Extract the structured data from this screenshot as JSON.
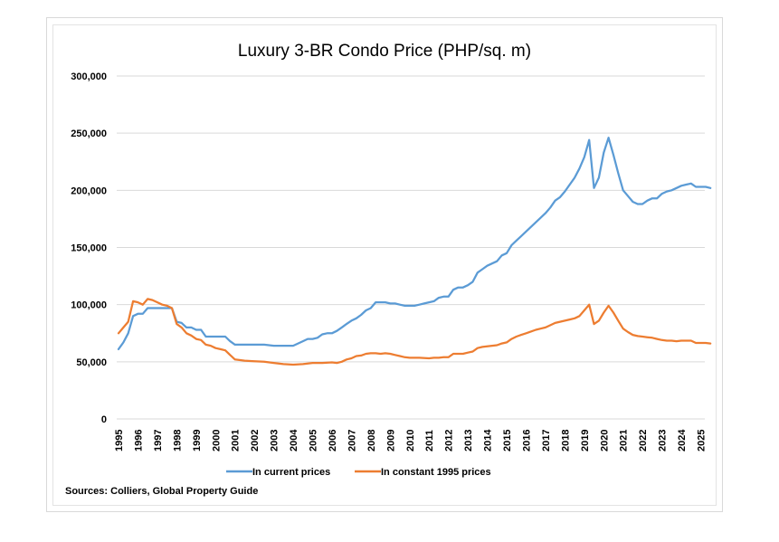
{
  "chart_data": {
    "type": "line",
    "title": "Luxury 3-BR Condo Price (PHP/sq. m)",
    "xlabel": "",
    "ylabel": "",
    "ylim": [
      0,
      300000
    ],
    "yticks": [
      0,
      50000,
      100000,
      150000,
      200000,
      250000,
      300000
    ],
    "ytick_labels": [
      "0",
      "50,000",
      "100,000",
      "150,000",
      "200,000",
      "250,000",
      "300,000"
    ],
    "xlim": [
      1995,
      2025.6
    ],
    "xtick_labels": [
      "1995",
      "1996",
      "1997",
      "1998",
      "1999",
      "2000",
      "2001",
      "2002",
      "2003",
      "2004",
      "2005",
      "2006",
      "2007",
      "2008",
      "2009",
      "2010",
      "2011",
      "2012",
      "2013",
      "2014",
      "2015",
      "2016",
      "2017",
      "2018",
      "2019",
      "2020",
      "2021",
      "2022",
      "2023",
      "2024",
      "2025"
    ],
    "grid": true,
    "legend": "bottom-center",
    "series": [
      {
        "name": "In current prices",
        "color": "#5b9bd5",
        "points": [
          [
            1995.0,
            61000
          ],
          [
            1995.25,
            67000
          ],
          [
            1995.5,
            75000
          ],
          [
            1995.75,
            90000
          ],
          [
            1996.0,
            92000
          ],
          [
            1996.25,
            92000
          ],
          [
            1996.5,
            97000
          ],
          [
            1996.75,
            97000
          ],
          [
            1997.0,
            97000
          ],
          [
            1997.25,
            97000
          ],
          [
            1997.5,
            97000
          ],
          [
            1997.75,
            97000
          ],
          [
            1998.0,
            85000
          ],
          [
            1998.25,
            84000
          ],
          [
            1998.5,
            80000
          ],
          [
            1998.75,
            80000
          ],
          [
            1999.0,
            78000
          ],
          [
            1999.25,
            78000
          ],
          [
            1999.5,
            72000
          ],
          [
            1999.75,
            72000
          ],
          [
            2000.0,
            72000
          ],
          [
            2000.25,
            72000
          ],
          [
            2000.5,
            72000
          ],
          [
            2000.75,
            68000
          ],
          [
            2001.0,
            65000
          ],
          [
            2001.5,
            65000
          ],
          [
            2002.0,
            65000
          ],
          [
            2002.5,
            65000
          ],
          [
            2003.0,
            64000
          ],
          [
            2003.5,
            64000
          ],
          [
            2004.0,
            64000
          ],
          [
            2004.25,
            66000
          ],
          [
            2004.5,
            68000
          ],
          [
            2004.75,
            70000
          ],
          [
            2005.0,
            70000
          ],
          [
            2005.25,
            71000
          ],
          [
            2005.5,
            74000
          ],
          [
            2005.75,
            75000
          ],
          [
            2006.0,
            75000
          ],
          [
            2006.25,
            77000
          ],
          [
            2006.5,
            80000
          ],
          [
            2006.75,
            83000
          ],
          [
            2007.0,
            86000
          ],
          [
            2007.25,
            88000
          ],
          [
            2007.5,
            91000
          ],
          [
            2007.75,
            95000
          ],
          [
            2008.0,
            97000
          ],
          [
            2008.25,
            102000
          ],
          [
            2008.5,
            102000
          ],
          [
            2008.75,
            102000
          ],
          [
            2009.0,
            101000
          ],
          [
            2009.25,
            101000
          ],
          [
            2009.5,
            100000
          ],
          [
            2009.75,
            99000
          ],
          [
            2010.0,
            99000
          ],
          [
            2010.25,
            99000
          ],
          [
            2010.5,
            100000
          ],
          [
            2010.75,
            101000
          ],
          [
            2011.0,
            102000
          ],
          [
            2011.25,
            103000
          ],
          [
            2011.5,
            106000
          ],
          [
            2011.75,
            107000
          ],
          [
            2012.0,
            107000
          ],
          [
            2012.25,
            113000
          ],
          [
            2012.5,
            115000
          ],
          [
            2012.75,
            115000
          ],
          [
            2013.0,
            117000
          ],
          [
            2013.25,
            120000
          ],
          [
            2013.5,
            128000
          ],
          [
            2013.75,
            131000
          ],
          [
            2014.0,
            134000
          ],
          [
            2014.25,
            136000
          ],
          [
            2014.5,
            138000
          ],
          [
            2014.75,
            143000
          ],
          [
            2015.0,
            145000
          ],
          [
            2015.25,
            152000
          ],
          [
            2015.5,
            156000
          ],
          [
            2015.75,
            160000
          ],
          [
            2016.0,
            164000
          ],
          [
            2016.25,
            168000
          ],
          [
            2016.5,
            172000
          ],
          [
            2016.75,
            176000
          ],
          [
            2017.0,
            180000
          ],
          [
            2017.25,
            185000
          ],
          [
            2017.5,
            191000
          ],
          [
            2017.75,
            194000
          ],
          [
            2018.0,
            199000
          ],
          [
            2018.25,
            205000
          ],
          [
            2018.5,
            211000
          ],
          [
            2018.75,
            219000
          ],
          [
            2019.0,
            229000
          ],
          [
            2019.25,
            244000
          ],
          [
            2019.5,
            202000
          ],
          [
            2019.75,
            211000
          ],
          [
            2020.0,
            233000
          ],
          [
            2020.25,
            246000
          ],
          [
            2020.5,
            231000
          ],
          [
            2020.75,
            215000
          ],
          [
            2021.0,
            200000
          ],
          [
            2021.25,
            195000
          ],
          [
            2021.5,
            190000
          ],
          [
            2021.75,
            188000
          ],
          [
            2022.0,
            188000
          ],
          [
            2022.25,
            191000
          ],
          [
            2022.5,
            193000
          ],
          [
            2022.75,
            193000
          ],
          [
            2023.0,
            197000
          ],
          [
            2023.25,
            199000
          ],
          [
            2023.5,
            200000
          ],
          [
            2023.75,
            202000
          ],
          [
            2024.0,
            204000
          ],
          [
            2024.25,
            205000
          ],
          [
            2024.5,
            206000
          ],
          [
            2024.75,
            203000
          ],
          [
            2025.0,
            203000
          ],
          [
            2025.25,
            203000
          ],
          [
            2025.5,
            202000
          ]
        ]
      },
      {
        "name": "In constant 1995 prices",
        "color": "#ed7d31",
        "points": [
          [
            1995.0,
            75000
          ],
          [
            1995.25,
            80000
          ],
          [
            1995.5,
            85000
          ],
          [
            1995.75,
            103000
          ],
          [
            1996.0,
            102000
          ],
          [
            1996.25,
            100000
          ],
          [
            1996.5,
            105000
          ],
          [
            1996.75,
            104000
          ],
          [
            1997.0,
            102000
          ],
          [
            1997.25,
            100000
          ],
          [
            1997.5,
            99000
          ],
          [
            1997.75,
            97000
          ],
          [
            1998.0,
            83000
          ],
          [
            1998.25,
            80000
          ],
          [
            1998.5,
            75000
          ],
          [
            1998.75,
            73000
          ],
          [
            1999.0,
            70000
          ],
          [
            1999.25,
            69000
          ],
          [
            1999.5,
            65000
          ],
          [
            1999.75,
            64000
          ],
          [
            2000.0,
            62000
          ],
          [
            2000.25,
            61000
          ],
          [
            2000.5,
            60000
          ],
          [
            2000.75,
            56000
          ],
          [
            2001.0,
            52000
          ],
          [
            2001.5,
            51000
          ],
          [
            2002.0,
            50500
          ],
          [
            2002.5,
            50000
          ],
          [
            2003.0,
            49000
          ],
          [
            2003.5,
            48000
          ],
          [
            2004.0,
            47500
          ],
          [
            2004.5,
            48000
          ],
          [
            2005.0,
            49000
          ],
          [
            2005.5,
            49000
          ],
          [
            2006.0,
            49500
          ],
          [
            2006.25,
            49000
          ],
          [
            2006.5,
            50000
          ],
          [
            2006.75,
            52000
          ],
          [
            2007.0,
            53000
          ],
          [
            2007.25,
            55000
          ],
          [
            2007.5,
            55500
          ],
          [
            2007.75,
            57000
          ],
          [
            2008.0,
            57500
          ],
          [
            2008.25,
            57500
          ],
          [
            2008.5,
            57000
          ],
          [
            2008.75,
            57500
          ],
          [
            2009.0,
            57000
          ],
          [
            2009.25,
            56000
          ],
          [
            2009.5,
            55000
          ],
          [
            2009.75,
            54000
          ],
          [
            2010.0,
            53500
          ],
          [
            2010.5,
            53500
          ],
          [
            2011.0,
            53000
          ],
          [
            2011.25,
            53500
          ],
          [
            2011.5,
            53500
          ],
          [
            2011.75,
            54000
          ],
          [
            2012.0,
            54000
          ],
          [
            2012.25,
            57000
          ],
          [
            2012.5,
            57000
          ],
          [
            2012.75,
            57000
          ],
          [
            2013.0,
            58000
          ],
          [
            2013.25,
            59000
          ],
          [
            2013.5,
            62000
          ],
          [
            2013.75,
            63000
          ],
          [
            2014.0,
            63500
          ],
          [
            2014.25,
            64000
          ],
          [
            2014.5,
            64500
          ],
          [
            2014.75,
            66000
          ],
          [
            2015.0,
            67000
          ],
          [
            2015.25,
            70000
          ],
          [
            2015.5,
            72000
          ],
          [
            2015.75,
            73500
          ],
          [
            2016.0,
            75000
          ],
          [
            2016.25,
            76500
          ],
          [
            2016.5,
            78000
          ],
          [
            2016.75,
            79000
          ],
          [
            2017.0,
            80000
          ],
          [
            2017.25,
            82000
          ],
          [
            2017.5,
            84000
          ],
          [
            2017.75,
            85000
          ],
          [
            2018.0,
            86000
          ],
          [
            2018.25,
            87000
          ],
          [
            2018.5,
            88000
          ],
          [
            2018.75,
            90000
          ],
          [
            2019.0,
            95000
          ],
          [
            2019.25,
            100000
          ],
          [
            2019.5,
            83000
          ],
          [
            2019.75,
            86000
          ],
          [
            2020.0,
            93000
          ],
          [
            2020.25,
            99000
          ],
          [
            2020.5,
            93000
          ],
          [
            2020.75,
            86000
          ],
          [
            2021.0,
            79000
          ],
          [
            2021.25,
            76000
          ],
          [
            2021.5,
            73500
          ],
          [
            2021.75,
            72500
          ],
          [
            2022.0,
            72000
          ],
          [
            2022.25,
            71500
          ],
          [
            2022.5,
            71000
          ],
          [
            2022.75,
            70000
          ],
          [
            2023.0,
            69000
          ],
          [
            2023.25,
            68500
          ],
          [
            2023.5,
            68500
          ],
          [
            2023.75,
            68000
          ],
          [
            2024.0,
            68500
          ],
          [
            2024.25,
            68500
          ],
          [
            2024.5,
            68500
          ],
          [
            2024.75,
            66500
          ],
          [
            2025.0,
            66500
          ],
          [
            2025.25,
            66500
          ],
          [
            2025.5,
            66000
          ]
        ]
      }
    ],
    "source_note": "Sources: Colliers, Global Property Guide"
  },
  "colors": {
    "gridline": "#d9d9d9",
    "frame": "#d9d9d9"
  }
}
